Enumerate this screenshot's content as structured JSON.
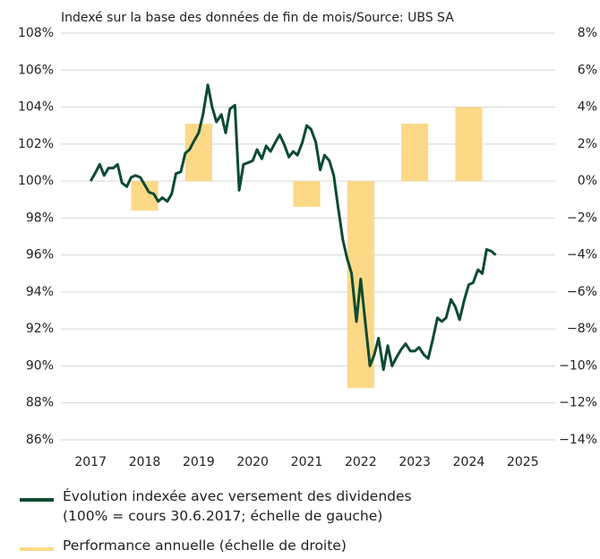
{
  "chart_data": {
    "type": "line_bar",
    "subtitle": "Indexé sur la base des données de fin de mois/Source: UBS SA",
    "xlim": [
      2016.45,
      2025.6
    ],
    "xticks": [
      2017,
      2018,
      2019,
      2020,
      2021,
      2022,
      2023,
      2024,
      2025
    ],
    "ylim": [
      86,
      108
    ],
    "yticks": [
      {
        "value": 86,
        "label": "86%"
      },
      {
        "value": 88,
        "label": "88%"
      },
      {
        "value": 90,
        "label": "90%"
      },
      {
        "value": 92,
        "label": "92%"
      },
      {
        "value": 94,
        "label": "94%"
      },
      {
        "value": 96,
        "label": "96%"
      },
      {
        "value": 98,
        "label": "98%"
      },
      {
        "value": 100,
        "label": "100%"
      },
      {
        "value": 102,
        "label": "102%"
      },
      {
        "value": 104,
        "label": "104%"
      },
      {
        "value": 106,
        "label": "106%"
      },
      {
        "value": 108,
        "label": "108%"
      }
    ],
    "y2lim": [
      -14,
      8
    ],
    "y2ticks": [
      {
        "value": -14,
        "label": "−14%"
      },
      {
        "value": -12,
        "label": "−12%"
      },
      {
        "value": -10,
        "label": "−10%"
      },
      {
        "value": -8,
        "label": "−8%"
      },
      {
        "value": -6,
        "label": "−6%"
      },
      {
        "value": -4,
        "label": "−4%"
      },
      {
        "value": -2,
        "label": "−2%"
      },
      {
        "value": 0,
        "label": "0%"
      },
      {
        "value": 2,
        "label": "2%"
      },
      {
        "value": 4,
        "label": "4%"
      },
      {
        "value": 6,
        "label": "6%"
      },
      {
        "value": 8,
        "label": "8%"
      }
    ],
    "grid": true,
    "series": [
      {
        "name": "Évolution indexée avec versement des dividendes\n(100% = cours 30.6.2017; échelle de gauche)",
        "kind": "line",
        "color": "#0d4a32",
        "x": [
          2017.0,
          2017.08,
          2017.17,
          2017.25,
          2017.33,
          2017.42,
          2017.5,
          2017.58,
          2017.67,
          2017.75,
          2017.83,
          2017.92,
          2018.0,
          2018.08,
          2018.17,
          2018.25,
          2018.33,
          2018.42,
          2018.5,
          2018.58,
          2018.67,
          2018.75,
          2018.83,
          2018.92,
          2019.0,
          2019.08,
          2019.17,
          2019.25,
          2019.33,
          2019.42,
          2019.5,
          2019.58,
          2019.67,
          2019.75,
          2019.83,
          2019.92,
          2020.0,
          2020.08,
          2020.17,
          2020.25,
          2020.33,
          2020.42,
          2020.5,
          2020.58,
          2020.67,
          2020.75,
          2020.83,
          2020.92,
          2021.0,
          2021.08,
          2021.17,
          2021.25,
          2021.33,
          2021.42,
          2021.5,
          2021.58,
          2021.67,
          2021.75,
          2021.83,
          2021.92,
          2022.0,
          2022.08,
          2022.17,
          2022.25,
          2022.33,
          2022.42,
          2022.5,
          2022.58,
          2022.67,
          2022.75,
          2022.83,
          2022.92,
          2023.0,
          2023.08,
          2023.17,
          2023.25,
          2023.33,
          2023.42,
          2023.5,
          2023.58,
          2023.67,
          2023.75,
          2023.83,
          2023.92,
          2024.0,
          2024.08,
          2024.17,
          2024.25,
          2024.33,
          2024.42,
          2024.5
        ],
        "values": [
          100,
          100.4,
          100.9,
          100.3,
          100.7,
          100.7,
          100.9,
          99.9,
          99.7,
          100.2,
          100.3,
          100.2,
          99.8,
          99.4,
          99.3,
          98.9,
          99.1,
          98.9,
          99.3,
          100.4,
          100.5,
          101.5,
          101.7,
          102.2,
          102.6,
          103.6,
          105.2,
          104.0,
          103.2,
          103.6,
          102.6,
          103.9,
          104.1,
          99.5,
          100.9,
          101.0,
          101.1,
          101.7,
          101.2,
          101.9,
          101.6,
          102.1,
          102.5,
          102.0,
          101.3,
          101.6,
          101.4,
          102.1,
          103.0,
          102.8,
          102.1,
          100.6,
          101.4,
          101.1,
          100.3,
          98.6,
          96.8,
          95.8,
          95.0,
          92.4,
          94.7,
          92.5,
          90.0,
          90.6,
          91.5,
          89.8,
          91.1,
          90.0,
          90.5,
          90.9,
          91.2,
          90.8,
          90.8,
          91.0,
          90.6,
          90.4,
          91.4,
          92.6,
          92.4,
          92.6,
          93.6,
          93.2,
          92.5,
          93.6,
          94.4,
          94.5,
          95.2,
          95.0,
          96.3,
          96.2,
          96.0
        ]
      },
      {
        "name": "Performance annuelle (échelle de droite)",
        "kind": "bar",
        "axis": "y2",
        "color": "#fcd987",
        "x": [
          2018,
          2019,
          2021,
          2022,
          2023,
          2024
        ],
        "values": [
          -1.6,
          3.1,
          -1.4,
          -11.2,
          3.1,
          4.0
        ]
      }
    ]
  }
}
